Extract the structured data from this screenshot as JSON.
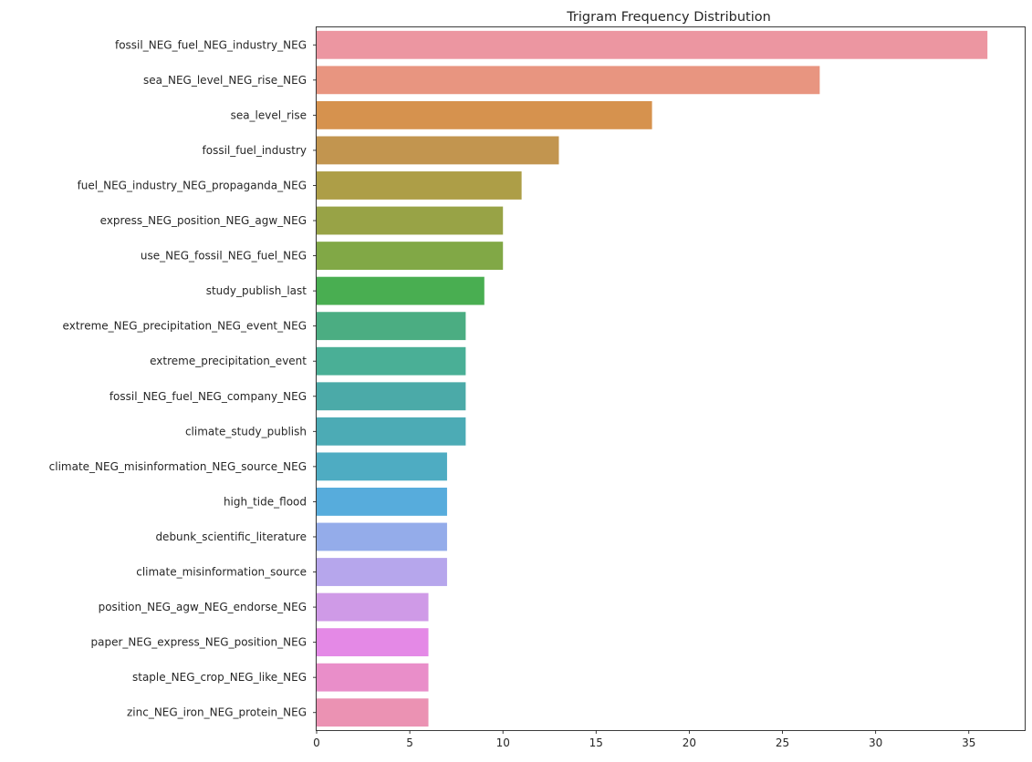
{
  "chart_data": {
    "type": "bar",
    "orientation": "horizontal",
    "title": "Trigram Frequency Distribution",
    "xlabel": "",
    "ylabel": "",
    "xlim": [
      0,
      38
    ],
    "xticks": [
      0,
      5,
      10,
      15,
      20,
      25,
      30,
      35
    ],
    "grid": false,
    "categories": [
      "fossil_NEG_fuel_NEG_industry_NEG",
      "sea_NEG_level_NEG_rise_NEG",
      "sea_level_rise",
      "fossil_fuel_industry",
      "fuel_NEG_industry_NEG_propaganda_NEG",
      "express_NEG_position_NEG_agw_NEG",
      "use_NEG_fossil_NEG_fuel_NEG",
      "study_publish_last",
      "extreme_NEG_precipitation_NEG_event_NEG",
      "extreme_precipitation_event",
      "fossil_NEG_fuel_NEG_company_NEG",
      "climate_study_publish",
      "climate_NEG_misinformation_NEG_source_NEG",
      "high_tide_flood",
      "debunk_scientific_literature",
      "climate_misinformation_source",
      "position_NEG_agw_NEG_endorse_NEG",
      "paper_NEG_express_NEG_position_NEG",
      "staple_NEG_crop_NEG_like_NEG",
      "zinc_NEG_iron_NEG_protein_NEG"
    ],
    "values": [
      36,
      27,
      18,
      13,
      11,
      10,
      10,
      9,
      8,
      8,
      8,
      8,
      7,
      7,
      7,
      7,
      6,
      6,
      6,
      6
    ],
    "colors": [
      "#ec96a1",
      "#e89580",
      "#d6924e",
      "#c2954f",
      "#ad9e47",
      "#98a346",
      "#81a846",
      "#49ae51",
      "#4bad82",
      "#4aaf96",
      "#4baaa8",
      "#4cabb5",
      "#4eacc2",
      "#57acdc",
      "#94acea",
      "#b6a6ec",
      "#cf9ae7",
      "#e489e6",
      "#e98ec9",
      "#eb92b3"
    ]
  }
}
